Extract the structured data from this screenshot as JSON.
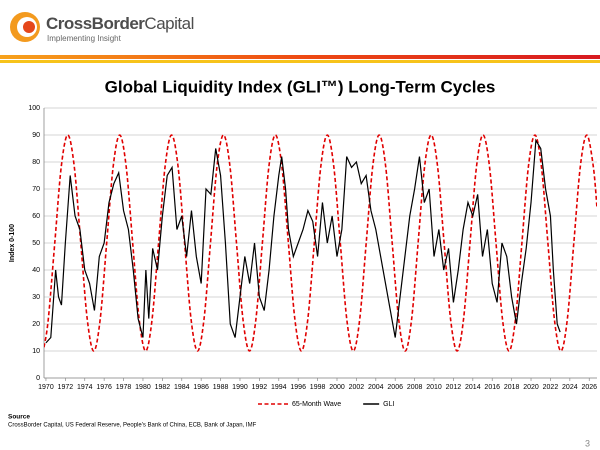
{
  "logo": {
    "name_bold": "CrossBorder",
    "name_regular": "Capital",
    "tagline": "Implementing Insight"
  },
  "chart_data": {
    "type": "line",
    "title": "Global Liquidity Index (GLI™) Long-Term Cycles",
    "ylabel": "Index 0-100",
    "xlim": [
      1969.8,
      2026.8
    ],
    "ylim": [
      0,
      100
    ],
    "xticks": [
      1970,
      1972,
      1974,
      1976,
      1978,
      1980,
      1982,
      1984,
      1986,
      1988,
      1990,
      1992,
      1994,
      1996,
      1998,
      2000,
      2002,
      2004,
      2006,
      2008,
      2010,
      2012,
      2014,
      2016,
      2018,
      2020,
      2022,
      2024,
      2026
    ],
    "yticks": [
      0,
      10,
      20,
      30,
      40,
      50,
      60,
      70,
      80,
      90,
      100
    ],
    "grid": true,
    "legend": "bottom",
    "series": [
      {
        "name": "65-Month Wave",
        "color": "#e00000",
        "dash": "dashed",
        "smooth": true,
        "x": [
          1969.8,
          1970.24,
          1970.91,
          1971.58,
          1972.25,
          1972.92,
          1973.59,
          1974.26,
          1974.93,
          1975.59,
          1976.26,
          1976.93,
          1977.6,
          1978.27,
          1978.94,
          1979.61,
          1980.28,
          1980.94,
          1981.61,
          1982.28,
          1982.95,
          1983.62,
          1984.29,
          1984.96,
          1985.63,
          1986.29,
          1986.96,
          1987.63,
          1988.3,
          1988.97,
          1989.64,
          1990.31,
          1990.98,
          1991.64,
          1992.31,
          1992.98,
          1993.65,
          1994.32,
          1994.99,
          1995.66,
          1996.33,
          1996.99,
          1997.66,
          1998.33,
          1999.0,
          1999.67,
          2000.34,
          2001.01,
          2001.68,
          2002.34,
          2003.01,
          2003.68,
          2004.35,
          2005.02,
          2005.69,
          2006.36,
          2007.03,
          2007.69,
          2008.36,
          2009.03,
          2009.7,
          2010.37,
          2011.04,
          2011.71,
          2012.38,
          2013.04,
          2013.71,
          2014.38,
          2015.05,
          2015.72,
          2016.39,
          2017.06,
          2017.73,
          2018.39,
          2019.06,
          2019.73,
          2020.4,
          2021.07,
          2021.74,
          2022.41,
          2023.08,
          2023.74,
          2024.41,
          2025.08,
          2025.75,
          2026.42,
          2026.8
        ],
        "values": [
          11.4,
          21.7,
          50,
          78.3,
          90,
          78.3,
          50,
          21.7,
          10,
          21.7,
          50,
          78.3,
          90,
          78.3,
          50,
          21.7,
          10,
          21.7,
          50,
          78.3,
          90,
          78.3,
          50,
          21.7,
          10,
          21.7,
          50,
          78.3,
          90,
          78.3,
          50,
          21.7,
          10,
          21.7,
          50,
          78.3,
          90,
          78.3,
          50,
          21.7,
          10,
          21.7,
          50,
          78.3,
          90,
          78.3,
          50,
          21.7,
          10,
          21.7,
          50,
          78.3,
          90,
          78.3,
          50,
          21.7,
          10,
          21.7,
          50,
          78.3,
          90,
          78.3,
          50,
          21.7,
          10,
          21.7,
          50,
          78.3,
          90,
          78.3,
          50,
          21.7,
          10,
          21.7,
          50,
          78.3,
          90,
          78.3,
          50,
          21.7,
          10,
          21.7,
          50,
          78.3,
          90,
          78.3,
          63
        ]
      },
      {
        "name": "GLI",
        "color": "#000000",
        "dash": "solid",
        "smooth": false,
        "x": [
          1970,
          1970.5,
          1971,
          1971.3,
          1971.6,
          1972,
          1972.5,
          1973,
          1973.5,
          1974,
          1974.5,
          1975,
          1975.5,
          1976,
          1976.5,
          1977,
          1977.5,
          1978,
          1978.5,
          1979,
          1979.5,
          1980,
          1980.3,
          1980.6,
          1981,
          1981.5,
          1982,
          1982.5,
          1983,
          1983.5,
          1984,
          1984.5,
          1985,
          1985.5,
          1986,
          1986.5,
          1987,
          1987.5,
          1988,
          1988.5,
          1989,
          1989.5,
          1990,
          1990.5,
          1991,
          1991.5,
          1992,
          1992.5,
          1993,
          1993.5,
          1994,
          1994.3,
          1994.7,
          1995,
          1995.5,
          1996,
          1996.5,
          1997,
          1997.5,
          1998,
          1998.5,
          1999,
          1999.5,
          2000,
          2000.5,
          2001,
          2001.5,
          2002,
          2002.5,
          2003,
          2003.5,
          2004,
          2004.5,
          2005,
          2005.5,
          2006,
          2006.5,
          2007,
          2007.5,
          2008,
          2008.5,
          2009,
          2009.5,
          2010,
          2010.5,
          2011,
          2011.5,
          2012,
          2012.5,
          2013,
          2013.5,
          2014,
          2014.5,
          2015,
          2015.5,
          2016,
          2016.5,
          2017,
          2017.5,
          2018,
          2018.5,
          2019,
          2019.5,
          2020,
          2020.5,
          2021,
          2021.5,
          2022,
          2022.3,
          2022.7,
          2023
        ],
        "values": [
          13,
          15,
          40,
          30,
          27,
          50,
          75,
          60,
          55,
          40,
          35,
          25,
          45,
          50,
          65,
          72,
          76,
          62,
          55,
          40,
          22,
          15,
          40,
          22,
          48,
          40,
          60,
          75,
          78,
          55,
          60,
          45,
          62,
          45,
          35,
          70,
          68,
          85,
          75,
          50,
          20,
          15,
          30,
          45,
          35,
          50,
          30,
          25,
          40,
          60,
          75,
          82,
          70,
          55,
          45,
          50,
          55,
          62,
          58,
          45,
          65,
          50,
          60,
          45,
          55,
          82,
          78,
          80,
          72,
          75,
          62,
          55,
          45,
          35,
          25,
          15,
          30,
          45,
          60,
          70,
          82,
          65,
          70,
          45,
          55,
          40,
          48,
          28,
          40,
          55,
          65,
          60,
          68,
          45,
          55,
          35,
          28,
          50,
          45,
          30,
          20,
          35,
          48,
          65,
          88,
          85,
          70,
          60,
          40,
          20,
          17
        ]
      }
    ]
  },
  "source": {
    "heading": "Source",
    "text": "CrossBorder Capital, US Federal Reserve, People's Bank of China, ECB, Bank of Japan, IMF"
  },
  "page_number": "3"
}
